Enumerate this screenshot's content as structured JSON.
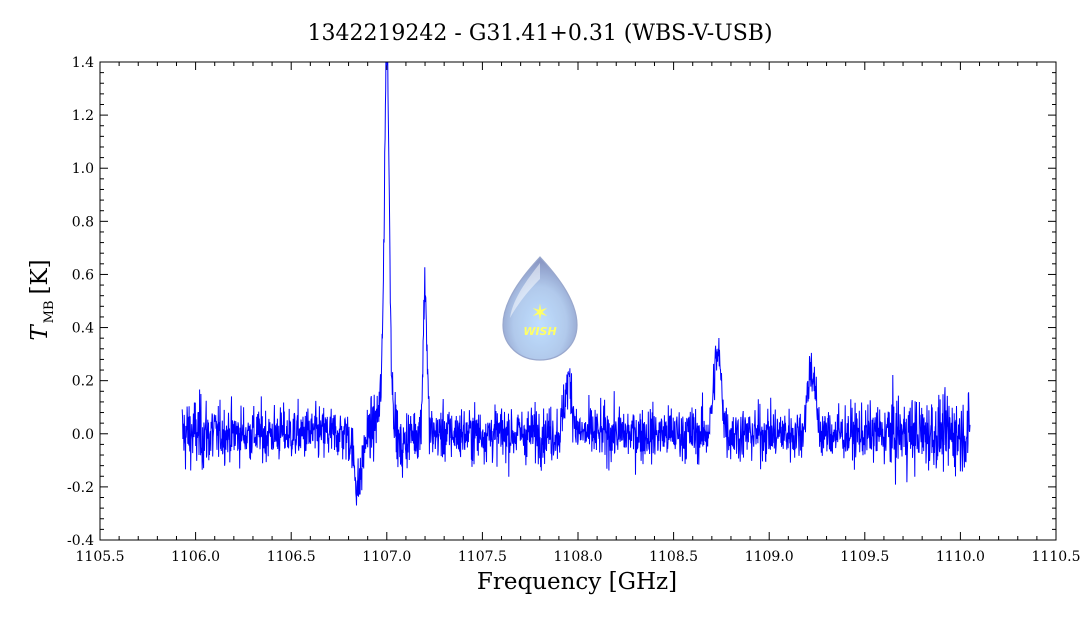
{
  "chart_data": {
    "type": "line",
    "title": "1342219242 - G31.41+0.31 (WBS-V-USB)",
    "xlabel": "Frequency [GHz]",
    "ylabel_main": "T",
    "ylabel_sub": "MB",
    "ylabel_unit": "[K]",
    "xlim": [
      1105.5,
      1110.5
    ],
    "ylim": [
      -0.4,
      1.4
    ],
    "x_ticks": [
      "1105.5",
      "1106.0",
      "1106.5",
      "1107.0",
      "1107.5",
      "1108.0",
      "1108.5",
      "1109.0",
      "1109.5",
      "1110.0",
      "1110.5"
    ],
    "y_ticks": [
      "-0.4",
      "-0.2",
      "0.0",
      "0.2",
      "0.4",
      "0.6",
      "0.8",
      "1.0",
      "1.2",
      "1.4"
    ],
    "grid": false,
    "series": [
      {
        "color": "#0000ff",
        "x_range": [
          1105.93,
          1110.05
        ],
        "baseline": 0.0,
        "noise_rms": 0.06,
        "features": [
          {
            "center": 1107.0,
            "peak": 1.3
          },
          {
            "center": 1107.2,
            "peak": 0.55
          },
          {
            "center": 1108.73,
            "peak": 0.3
          },
          {
            "center": 1107.95,
            "peak": 0.2
          },
          {
            "center": 1109.22,
            "peak": 0.25
          },
          {
            "center": 1106.85,
            "peak": -0.2
          }
        ]
      }
    ]
  },
  "logo": {
    "text": "WISH"
  }
}
